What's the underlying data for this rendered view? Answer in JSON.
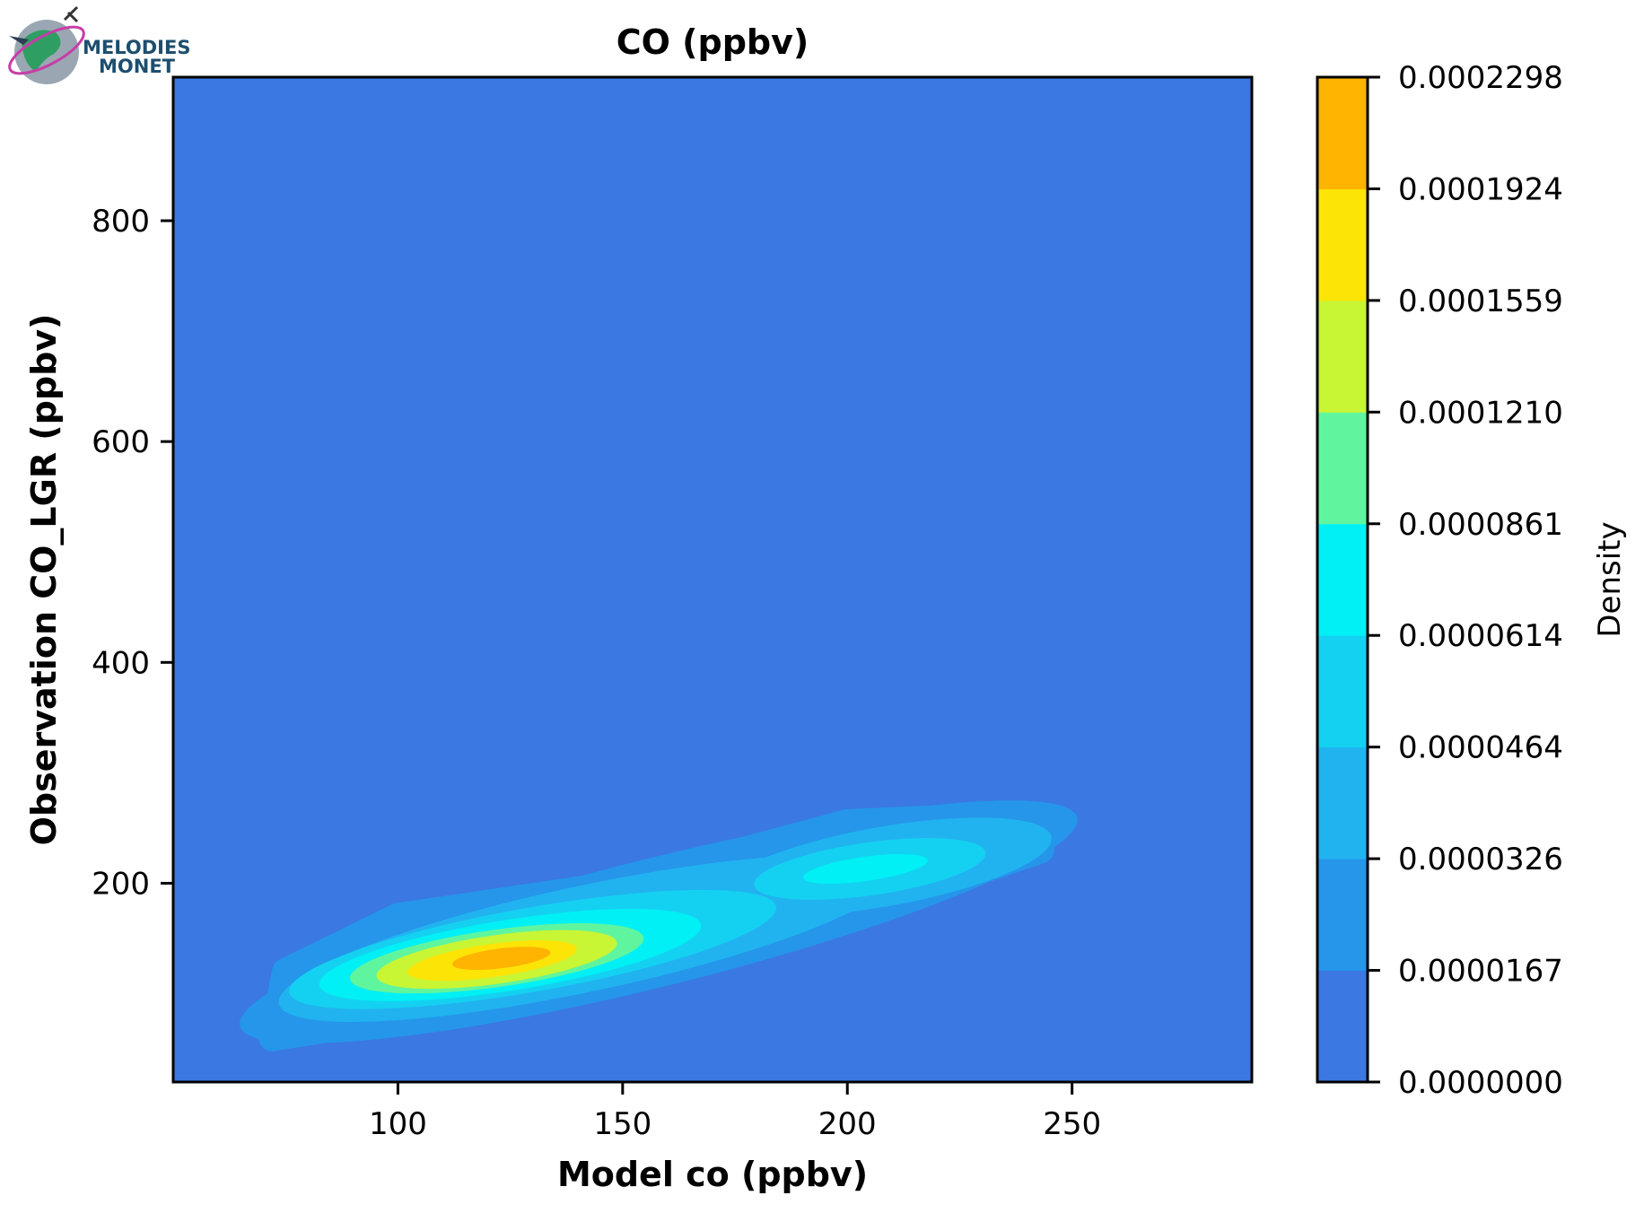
{
  "logo": {
    "line1": "MELODIES",
    "line2": "MONET"
  },
  "chart_data": {
    "type": "heatmap",
    "title": "CO (ppbv)",
    "xlabel": "Model co (ppbv)",
    "ylabel": "Observation CO_LGR (ppbv)",
    "xlim": [
      50,
      290
    ],
    "ylim": [
      20,
      930
    ],
    "x_ticks": [
      100,
      150,
      200,
      250
    ],
    "y_ticks": [
      200,
      400,
      600,
      800
    ],
    "grid": false,
    "colorbar": {
      "label": "Density",
      "levels": [
        "0.0000000",
        "0.0000167",
        "0.0000326",
        "0.0000464",
        "0.0000614",
        "0.0000861",
        "0.0001210",
        "0.0001559",
        "0.0001924",
        "0.0002298"
      ],
      "colors": [
        "#3b78e2",
        "#2596ea",
        "#21b3f0",
        "#14d1f1",
        "#00f0f5",
        "#5ff59f",
        "#c8f534",
        "#fde407",
        "#feb400"
      ]
    },
    "density_peaks": [
      {
        "x": 122,
        "y": 132,
        "level": 8
      },
      {
        "x": 203,
        "y": 213,
        "level": 4
      }
    ]
  }
}
